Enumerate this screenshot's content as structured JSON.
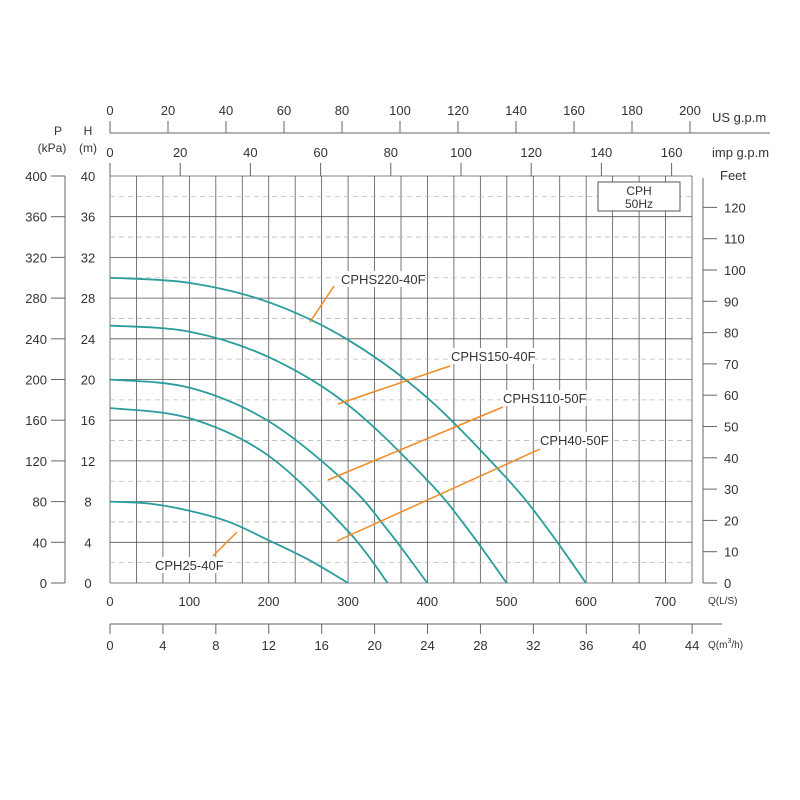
{
  "chart_data": {
    "type": "line",
    "title": "",
    "legend_box": {
      "line1": "CPH",
      "line2": "50Hz"
    },
    "x_axes": {
      "q_ls": {
        "label": "Q(L/S)",
        "ticks": [
          0,
          100,
          200,
          300,
          400,
          500,
          600,
          700
        ],
        "range": [
          0,
          733
        ]
      },
      "q_m3h": {
        "label": "Q(m³/h)",
        "label_main": "Q(m",
        "label_sup": "3",
        "label_end": "/h)",
        "ticks": [
          0,
          4,
          8,
          12,
          16,
          20,
          24,
          28,
          32,
          36,
          40,
          44
        ],
        "range": [
          0,
          44
        ]
      },
      "us_gpm": {
        "label": "US g.p.m",
        "ticks": [
          0,
          20,
          40,
          60,
          80,
          100,
          120,
          140,
          160,
          180,
          200
        ],
        "range": [
          0,
          200
        ]
      },
      "imp_gpm": {
        "label": "imp g.p.m",
        "ticks": [
          0,
          20,
          40,
          60,
          80,
          100,
          120,
          140,
          160
        ],
        "range": [
          0,
          166
        ]
      }
    },
    "y_axes": {
      "h_m": {
        "label_top": "H",
        "label_bottom": "(m)",
        "ticks": [
          0,
          4,
          8,
          12,
          16,
          20,
          24,
          28,
          32,
          36,
          40
        ],
        "range": [
          0,
          40
        ]
      },
      "p_kpa": {
        "label_top": "P",
        "label_bottom": "(kPa)",
        "ticks": [
          0,
          40,
          80,
          120,
          160,
          200,
          240,
          280,
          320,
          360,
          400
        ],
        "range": [
          0,
          400
        ]
      },
      "feet": {
        "label": "Feet",
        "ticks": [
          0,
          10,
          20,
          30,
          40,
          50,
          60,
          70,
          80,
          90,
          100,
          110,
          120
        ],
        "range": [
          0,
          130
        ]
      }
    },
    "grid": true,
    "curve_color": "#2a9d9a",
    "leader_color": "#f08a24",
    "series": [
      {
        "name": "CPHS220-40F",
        "points": [
          [
            0,
            30
          ],
          [
            100,
            29.5
          ],
          [
            200,
            27.6
          ],
          [
            300,
            23.9
          ],
          [
            400,
            18.2
          ],
          [
            500,
            10.3
          ],
          [
            550,
            5.5
          ],
          [
            600,
            0
          ]
        ]
      },
      {
        "name": "CPHS150-40F",
        "points": [
          [
            0,
            25.3
          ],
          [
            100,
            24.7
          ],
          [
            200,
            22.2
          ],
          [
            300,
            17.5
          ],
          [
            400,
            10.1
          ],
          [
            450,
            5.4
          ],
          [
            500,
            0
          ]
        ]
      },
      {
        "name": "CPHS110-50F",
        "points": [
          [
            0,
            20
          ],
          [
            100,
            19.2
          ],
          [
            200,
            15.9
          ],
          [
            300,
            9.7
          ],
          [
            350,
            5.2
          ],
          [
            400,
            0
          ]
        ]
      },
      {
        "name": "CPH40-50F",
        "points": [
          [
            0,
            17.2
          ],
          [
            100,
            16.2
          ],
          [
            200,
            12.5
          ],
          [
            300,
            5.1
          ],
          [
            350,
            0
          ]
        ]
      },
      {
        "name": "CPH25-40F",
        "points": [
          [
            0,
            8
          ],
          [
            50,
            7.8
          ],
          [
            100,
            7.1
          ],
          [
            150,
            6
          ],
          [
            200,
            4.2
          ],
          [
            250,
            2.3
          ],
          [
            300,
            0
          ]
        ]
      }
    ]
  }
}
